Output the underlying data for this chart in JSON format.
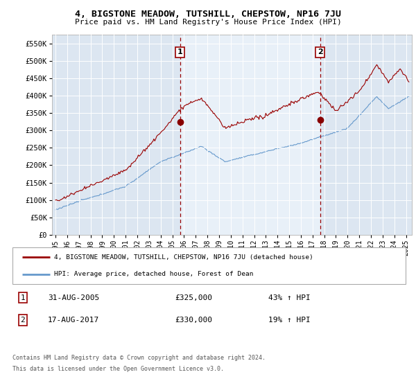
{
  "title": "4, BIGSTONE MEADOW, TUTSHILL, CHEPSTOW, NP16 7JU",
  "subtitle": "Price paid vs. HM Land Registry's House Price Index (HPI)",
  "ylabel_ticks": [
    "£0",
    "£50K",
    "£100K",
    "£150K",
    "£200K",
    "£250K",
    "£300K",
    "£350K",
    "£400K",
    "£450K",
    "£500K",
    "£550K"
  ],
  "ylim_max": 575000,
  "xlim_start": 1994.7,
  "xlim_end": 2025.5,
  "purchase1_date": 2005.664,
  "purchase1_price": 325000,
  "purchase2_date": 2017.644,
  "purchase2_price": 330000,
  "legend_line1": "4, BIGSTONE MEADOW, TUTSHILL, CHEPSTOW, NP16 7JU (detached house)",
  "legend_line2": "HPI: Average price, detached house, Forest of Dean",
  "table_row1": [
    "1",
    "31-AUG-2005",
    "£325,000",
    "43% ↑ HPI"
  ],
  "table_row2": [
    "2",
    "17-AUG-2017",
    "£330,000",
    "19% ↑ HPI"
  ],
  "footer1": "Contains HM Land Registry data © Crown copyright and database right 2024.",
  "footer2": "This data is licensed under the Open Government Licence v3.0.",
  "bg_color": "#dce6f1",
  "shade_color": "#e8f0f8",
  "red_color": "#990000",
  "blue_color": "#6699cc",
  "grid_color": "white",
  "title_fontsize": 10,
  "subtitle_fontsize": 8.5
}
